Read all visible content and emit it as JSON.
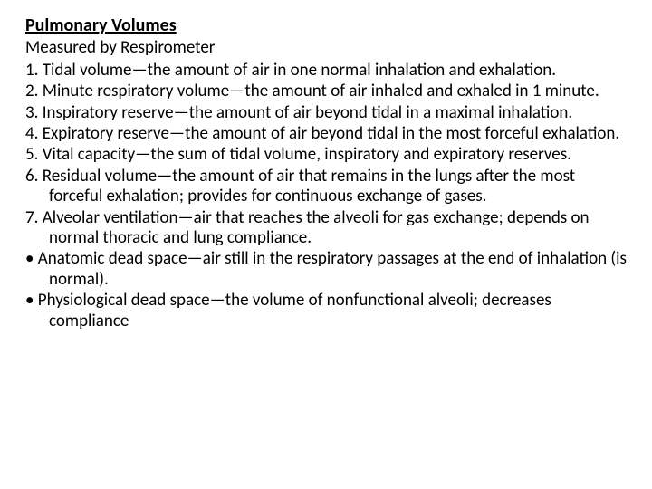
{
  "slide": {
    "title": "Pulmonary Volumes",
    "subtitle": "Measured by Respirometer",
    "items": [
      "1. Tidal volume—the amount of air in one normal inhalation and exhalation.",
      "2. Minute respiratory volume—the amount of air inhaled and exhaled in 1 minute.",
      "3. Inspiratory reserve—the amount of air beyond tidal in a maximal inhalation.",
      "4. Expiratory reserve—the amount of air beyond tidal in the most forceful exhalation.",
      "5. Vital capacity—the sum of tidal volume, inspiratory and expiratory reserves.",
      "6. Residual volume—the amount of air that remains in the lungs after the most forceful exhalation; provides for continuous exchange of gases.",
      "7. Alveolar ventilation—air that reaches the alveoli for gas exchange; depends on normal thoracic and lung compliance.",
      "• Anatomic dead space—air still in the respiratory passages at the end of inhalation (is normal).",
      "• Physiological dead space—the volume of nonfunctional alveoli; decreases compliance"
    ]
  },
  "colors": {
    "background": "#ffffff",
    "text": "#000000"
  },
  "typography": {
    "title_fontsize": 20,
    "title_weight": "bold",
    "body_fontsize": 19,
    "font_family": "Calibri"
  }
}
